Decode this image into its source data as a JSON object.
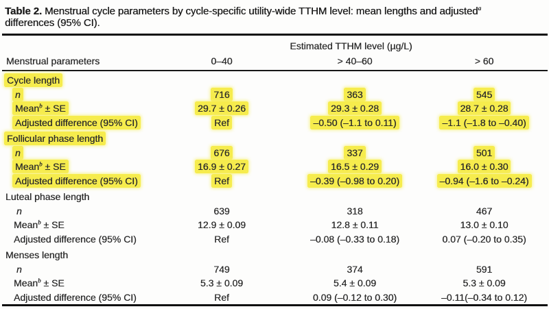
{
  "caption": {
    "label": "Table 2.",
    "text_before_sup": " Menstrual cycle parameters by cycle-specific utility-wide TTHM level: mean lengths and adjusted",
    "footnote_marker": "a",
    "text_after_sup": " differences (95% CI)."
  },
  "table": {
    "spanner_header": "Estimated TTHM level (µg/L)",
    "stub_header": "Menstrual parameters",
    "columns": [
      "0–40",
      "> 40–60",
      "> 60"
    ],
    "highlight_color": "#f6ec4d",
    "sections": [
      {
        "label": "Cycle length",
        "highlighted": true,
        "rows": [
          {
            "label_pre": "n",
            "label_sup": "",
            "label_post": "",
            "italic": true,
            "values": [
              "716",
              "363",
              "545"
            ]
          },
          {
            "label_pre": "Mean",
            "label_sup": "b",
            "label_post": " ± SE",
            "italic": false,
            "values": [
              "29.7 ± 0.26",
              "29.3 ± 0.28",
              "28.7 ± 0.28"
            ]
          },
          {
            "label_pre": "Adjusted difference (95% CI)",
            "label_sup": "",
            "label_post": "",
            "italic": false,
            "values": [
              "Ref",
              "–0.50 (–1.1 to 0.11)",
              "–1.1 (–1.8 to –0.40)"
            ]
          }
        ]
      },
      {
        "label": "Follicular phase length",
        "highlighted": true,
        "rows": [
          {
            "label_pre": "n",
            "label_sup": "",
            "label_post": "",
            "italic": true,
            "values": [
              "676",
              "337",
              "501"
            ]
          },
          {
            "label_pre": "Mean",
            "label_sup": "b",
            "label_post": " ± SE",
            "italic": false,
            "values": [
              "16.9 ± 0.27",
              "16.5 ± 0.29",
              "16.0 ± 0.30"
            ]
          },
          {
            "label_pre": "Adjusted difference (95% CI)",
            "label_sup": "",
            "label_post": "",
            "italic": false,
            "values": [
              "Ref",
              "–0.39 (–0.98 to 0.20)",
              "–0.94 (–1.6 to –0.24)"
            ]
          }
        ]
      },
      {
        "label": "Luteal phase length",
        "highlighted": false,
        "rows": [
          {
            "label_pre": "n",
            "label_sup": "",
            "label_post": "",
            "italic": true,
            "values": [
              "639",
              "318",
              "467"
            ]
          },
          {
            "label_pre": "Mean",
            "label_sup": "b",
            "label_post": " ± SE",
            "italic": false,
            "values": [
              "12.9 ± 0.09",
              "12.8 ± 0.11",
              "13.0 ± 0.10"
            ]
          },
          {
            "label_pre": "Adjusted difference (95% CI)",
            "label_sup": "",
            "label_post": "",
            "italic": false,
            "values": [
              "Ref",
              "–0.08 (–0.33 to 0.18)",
              "0.07 (–0.20 to 0.35)"
            ]
          }
        ]
      },
      {
        "label": "Menses length",
        "highlighted": false,
        "rows": [
          {
            "label_pre": "n",
            "label_sup": "",
            "label_post": "",
            "italic": true,
            "values": [
              "749",
              "374",
              "591"
            ]
          },
          {
            "label_pre": "Mean",
            "label_sup": "b",
            "label_post": " ± SE",
            "italic": false,
            "values": [
              "5.3 ± 0.09",
              "5.4 ± 0.09",
              "5.3 ± 0.09"
            ]
          },
          {
            "label_pre": "Adjusted difference (95% CI)",
            "label_sup": "",
            "label_post": "",
            "italic": false,
            "values": [
              "Ref",
              "0.09 (–0.12 to 0.30)",
              "–0.11(–0.34 to 0.12)"
            ]
          }
        ]
      }
    ]
  }
}
